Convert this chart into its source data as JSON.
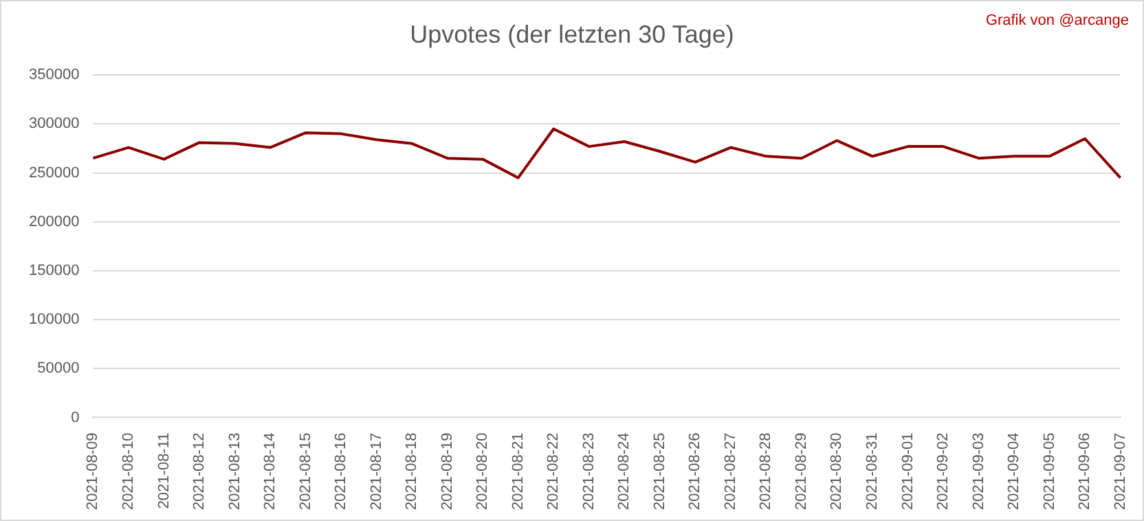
{
  "chart_data": {
    "type": "line",
    "title": "Upvotes (der letzten 30 Tage)",
    "annotations": [
      "Grafik von @arcange"
    ],
    "categories": [
      "2021-08-09",
      "2021-08-10",
      "2021-08-11",
      "2021-08-12",
      "2021-08-13",
      "2021-08-14",
      "2021-08-15",
      "2021-08-16",
      "2021-08-17",
      "2021-08-18",
      "2021-08-19",
      "2021-08-20",
      "2021-08-21",
      "2021-08-22",
      "2021-08-23",
      "2021-08-24",
      "2021-08-25",
      "2021-08-26",
      "2021-08-27",
      "2021-08-28",
      "2021-08-29",
      "2021-08-30",
      "2021-08-31",
      "2021-09-01",
      "2021-09-02",
      "2021-09-03",
      "2021-09-04",
      "2021-09-05",
      "2021-09-06",
      "2021-09-07"
    ],
    "series": [
      {
        "color": "#8b0000",
        "values": [
          265000,
          276000,
          264000,
          281000,
          280000,
          276000,
          291000,
          290000,
          284000,
          280000,
          265000,
          264000,
          245000,
          295000,
          277000,
          282000,
          272000,
          261000,
          276000,
          267000,
          265000,
          283000,
          267000,
          277000,
          277000,
          265000,
          267000,
          267000,
          285000,
          245000
        ]
      }
    ],
    "ylim": [
      0,
      350000
    ],
    "yticks": [
      0,
      50000,
      100000,
      150000,
      200000,
      250000,
      300000,
      350000
    ],
    "grid": "y",
    "legend": false,
    "marker": "none",
    "line_style": "solid"
  }
}
